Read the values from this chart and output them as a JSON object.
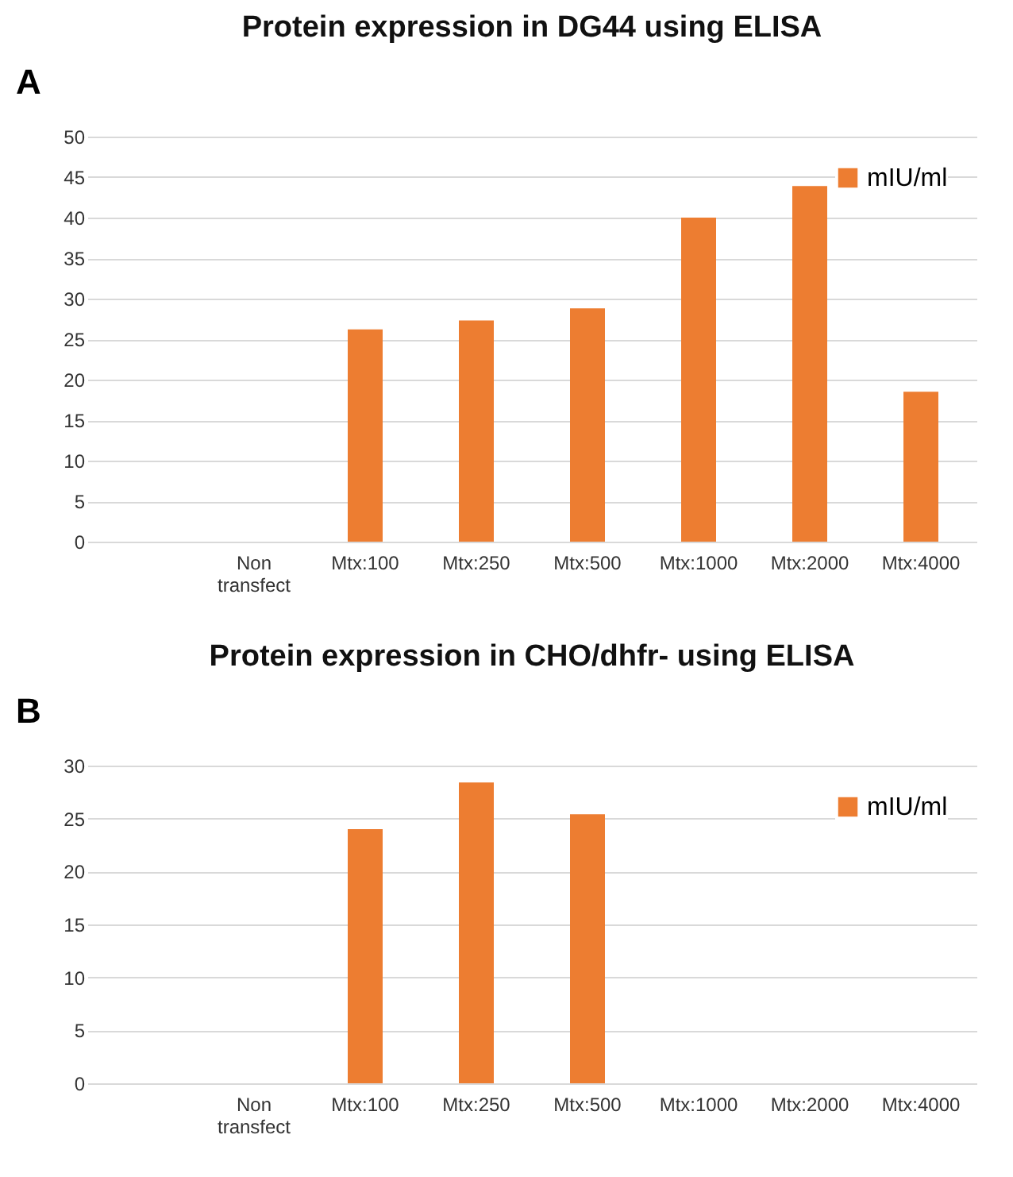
{
  "chart_data": [
    {
      "type": "bar",
      "title": "Protein expression in DG44 using ELISA",
      "annotations": [
        "A"
      ],
      "categories": [
        null,
        "Non transfect",
        "Mtx:100",
        "Mtx:250",
        "Mtx:500",
        "Mtx:1000",
        "Mtx:2000",
        "Mtx:4000"
      ],
      "series": [
        {
          "name": "mIU/ml",
          "color": "#ed7d31",
          "values": [
            null,
            0,
            26.2,
            27.3,
            28.8,
            40.0,
            43.9,
            18.5
          ]
        }
      ],
      "ylim": [
        0,
        50
      ],
      "yticks": [
        0,
        5,
        10,
        15,
        20,
        25,
        30,
        35,
        40,
        45,
        50
      ],
      "grid": "y",
      "legend": "top right"
    },
    {
      "type": "bar",
      "title": "Protein expression in CHO/dhfr- using ELISA",
      "annotations": [
        "B"
      ],
      "categories": [
        null,
        "Non transfect",
        "Mtx:100",
        "Mtx:250",
        "Mtx:500",
        "Mtx:1000",
        "Mtx:2000",
        "Mtx:4000"
      ],
      "series": [
        {
          "name": "mIU/ml",
          "color": "#ed7d31",
          "values": [
            null,
            0,
            24.0,
            28.4,
            25.4,
            0,
            0,
            0
          ]
        }
      ],
      "ylim": [
        0,
        30
      ],
      "yticks": [
        0,
        5,
        10,
        15,
        20,
        25,
        30
      ],
      "grid": "y",
      "legend": "top right"
    }
  ]
}
